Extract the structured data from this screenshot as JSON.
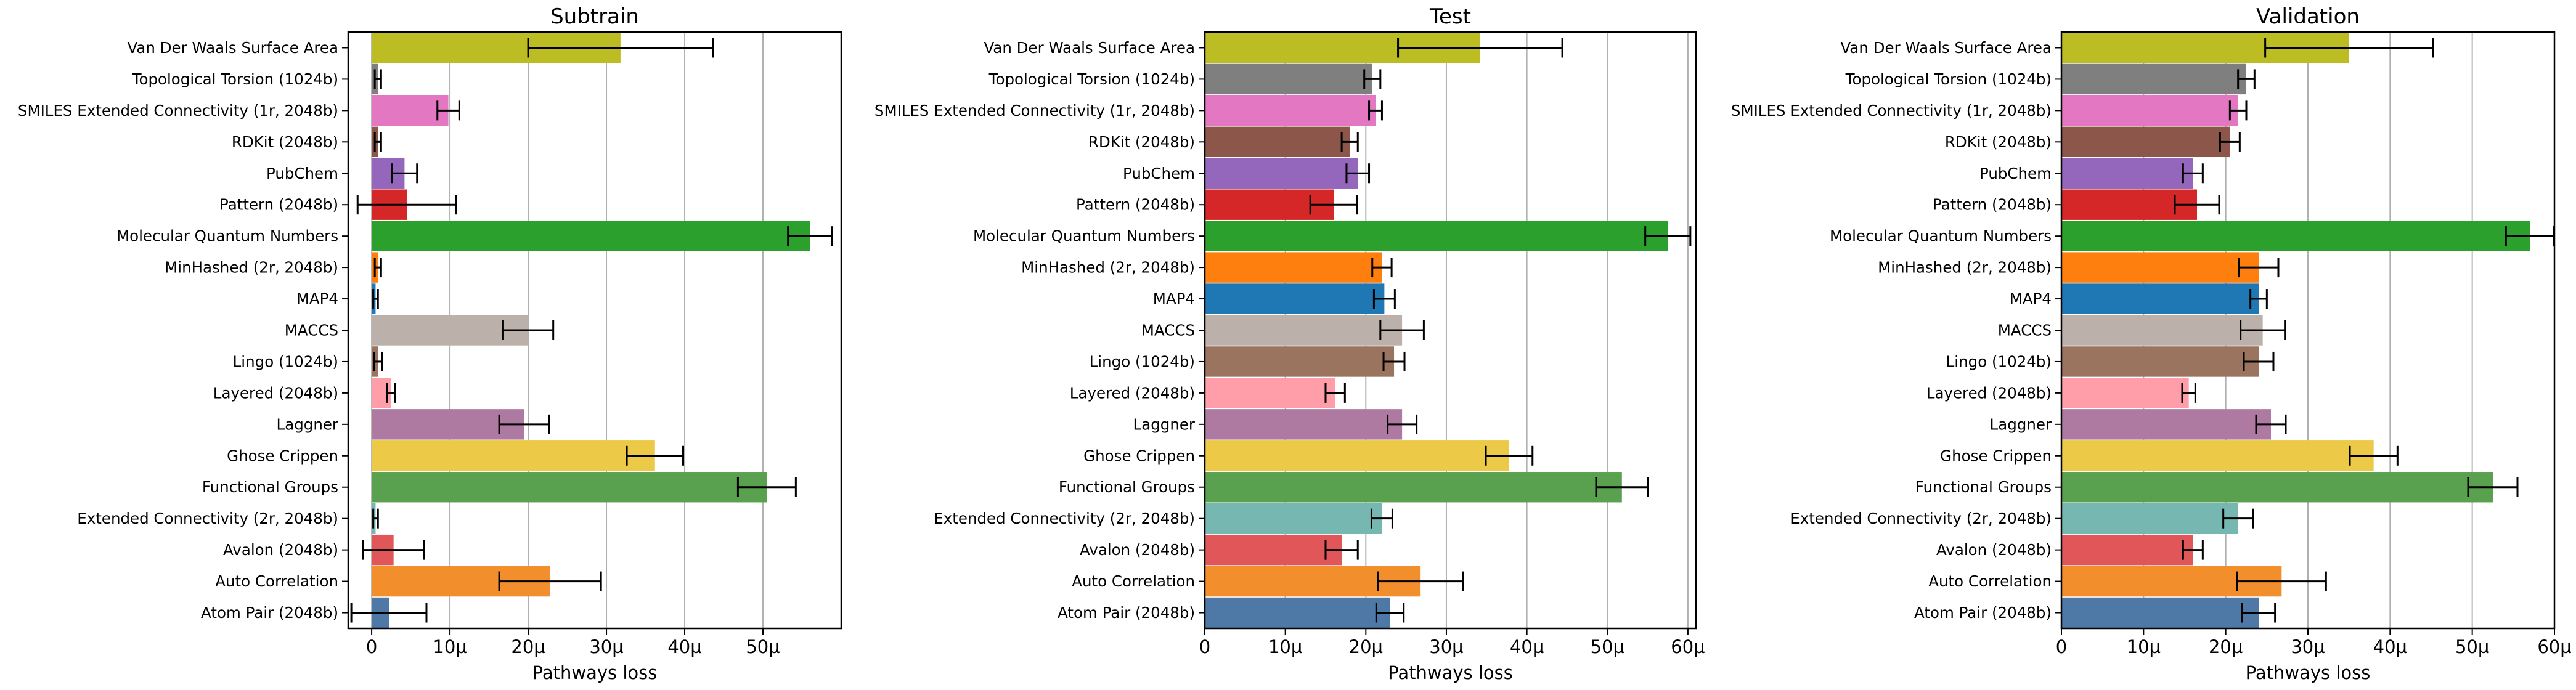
{
  "chart_data": [
    {
      "type": "bar",
      "orientation": "horizontal",
      "title": "Subtrain",
      "xlabel": "Pathways loss",
      "xlim": [
        -3,
        60
      ],
      "xticks": [
        0,
        10,
        20,
        30,
        40,
        50
      ],
      "xtick_labels": [
        "0",
        "10µ",
        "20µ",
        "30µ",
        "40µ",
        "50µ"
      ],
      "grid": "x",
      "categories": [
        "Van Der Waals Surface Area",
        "Topological Torsion (1024b)",
        "SMILES Extended Connectivity (1r, 2048b)",
        "RDKit (2048b)",
        "PubChem",
        "Pattern (2048b)",
        "Molecular Quantum Numbers",
        "MinHashed (2r, 2048b)",
        "MAP4",
        "MACCS",
        "Lingo (1024b)",
        "Layered (2048b)",
        "Laggner",
        "Ghose Crippen",
        "Functional Groups",
        "Extended Connectivity (2r, 2048b)",
        "Avalon (2048b)",
        "Auto Correlation",
        "Atom Pair (2048b)"
      ],
      "values": [
        31.8,
        0.8,
        9.8,
        0.8,
        4.2,
        4.5,
        56.0,
        0.8,
        0.5,
        20.0,
        0.8,
        2.5,
        19.5,
        36.2,
        50.5,
        0.5,
        2.8,
        22.8,
        2.2
      ],
      "errors": [
        11.8,
        0.4,
        1.4,
        0.4,
        1.6,
        6.3,
        2.8,
        0.4,
        0.3,
        3.2,
        0.5,
        0.5,
        3.2,
        3.6,
        3.7,
        0.3,
        3.9,
        6.5,
        4.8
      ],
      "colors": [
        "#bcbd22",
        "#7f7f7f",
        "#e377c2",
        "#8c564b",
        "#9467bd",
        "#d62728",
        "#2ca02c",
        "#ff7f0e",
        "#1f77b4",
        "#bcb0aa",
        "#9b7460",
        "#ff9ea8",
        "#af7aa1",
        "#edc948",
        "#59a14f",
        "#76b7b2",
        "#e15759",
        "#f28e2b",
        "#4e79a7"
      ]
    },
    {
      "type": "bar",
      "orientation": "horizontal",
      "title": "Test",
      "xlabel": "Pathways loss",
      "xlim": [
        0,
        61
      ],
      "xticks": [
        0,
        10,
        20,
        30,
        40,
        50,
        60
      ],
      "xtick_labels": [
        "0",
        "10µ",
        "20µ",
        "30µ",
        "40µ",
        "50µ",
        "60µ"
      ],
      "grid": "x",
      "categories": [
        "Van Der Waals Surface Area",
        "Topological Torsion (1024b)",
        "SMILES Extended Connectivity (1r, 2048b)",
        "RDKit (2048b)",
        "PubChem",
        "Pattern (2048b)",
        "Molecular Quantum Numbers",
        "MinHashed (2r, 2048b)",
        "MAP4",
        "MACCS",
        "Lingo (1024b)",
        "Layered (2048b)",
        "Laggner",
        "Ghose Crippen",
        "Functional Groups",
        "Extended Connectivity (2r, 2048b)",
        "Avalon (2048b)",
        "Auto Correlation",
        "Atom Pair (2048b)"
      ],
      "values": [
        34.2,
        20.8,
        21.2,
        18.0,
        19.0,
        16.0,
        57.5,
        22.0,
        22.3,
        24.5,
        23.5,
        16.2,
        24.5,
        37.8,
        51.8,
        22.0,
        17.0,
        26.8,
        23.0
      ],
      "errors": [
        10.2,
        1.0,
        0.8,
        1.0,
        1.4,
        2.9,
        2.8,
        1.2,
        1.3,
        2.7,
        1.3,
        1.2,
        1.8,
        2.9,
        3.2,
        1.3,
        2.0,
        5.3,
        1.7
      ],
      "colors": [
        "#bcbd22",
        "#7f7f7f",
        "#e377c2",
        "#8c564b",
        "#9467bd",
        "#d62728",
        "#2ca02c",
        "#ff7f0e",
        "#1f77b4",
        "#bcb0aa",
        "#9b7460",
        "#ff9ea8",
        "#af7aa1",
        "#edc948",
        "#59a14f",
        "#76b7b2",
        "#e15759",
        "#f28e2b",
        "#4e79a7"
      ]
    },
    {
      "type": "bar",
      "orientation": "horizontal",
      "title": "Validation",
      "xlabel": "Pathways loss",
      "xlim": [
        0,
        60
      ],
      "xticks": [
        0,
        10,
        20,
        30,
        40,
        50,
        60
      ],
      "xtick_labels": [
        "0",
        "10µ",
        "20µ",
        "30µ",
        "40µ",
        "50µ",
        "60µ"
      ],
      "grid": "x",
      "categories": [
        "Van Der Waals Surface Area",
        "Topological Torsion (1024b)",
        "SMILES Extended Connectivity (1r, 2048b)",
        "RDKit (2048b)",
        "PubChem",
        "Pattern (2048b)",
        "Molecular Quantum Numbers",
        "MinHashed (2r, 2048b)",
        "MAP4",
        "MACCS",
        "Lingo (1024b)",
        "Layered (2048b)",
        "Laggner",
        "Ghose Crippen",
        "Functional Groups",
        "Extended Connectivity (2r, 2048b)",
        "Avalon (2048b)",
        "Auto Correlation",
        "Atom Pair (2048b)"
      ],
      "values": [
        35.0,
        22.5,
        21.5,
        20.5,
        16.0,
        16.5,
        57.0,
        24.0,
        24.0,
        24.5,
        24.0,
        15.5,
        25.5,
        38.0,
        52.5,
        21.5,
        16.0,
        26.8,
        24.0
      ],
      "errors": [
        10.2,
        1.0,
        1.0,
        1.2,
        1.2,
        2.7,
        2.9,
        2.4,
        1.0,
        2.7,
        1.8,
        0.8,
        1.8,
        2.9,
        3.0,
        1.8,
        1.2,
        5.4,
        2.0
      ],
      "colors": [
        "#bcbd22",
        "#7f7f7f",
        "#e377c2",
        "#8c564b",
        "#9467bd",
        "#d62728",
        "#2ca02c",
        "#ff7f0e",
        "#1f77b4",
        "#bcb0aa",
        "#9b7460",
        "#ff9ea8",
        "#af7aa1",
        "#edc948",
        "#59a14f",
        "#76b7b2",
        "#e15759",
        "#f28e2b",
        "#4e79a7"
      ]
    }
  ]
}
